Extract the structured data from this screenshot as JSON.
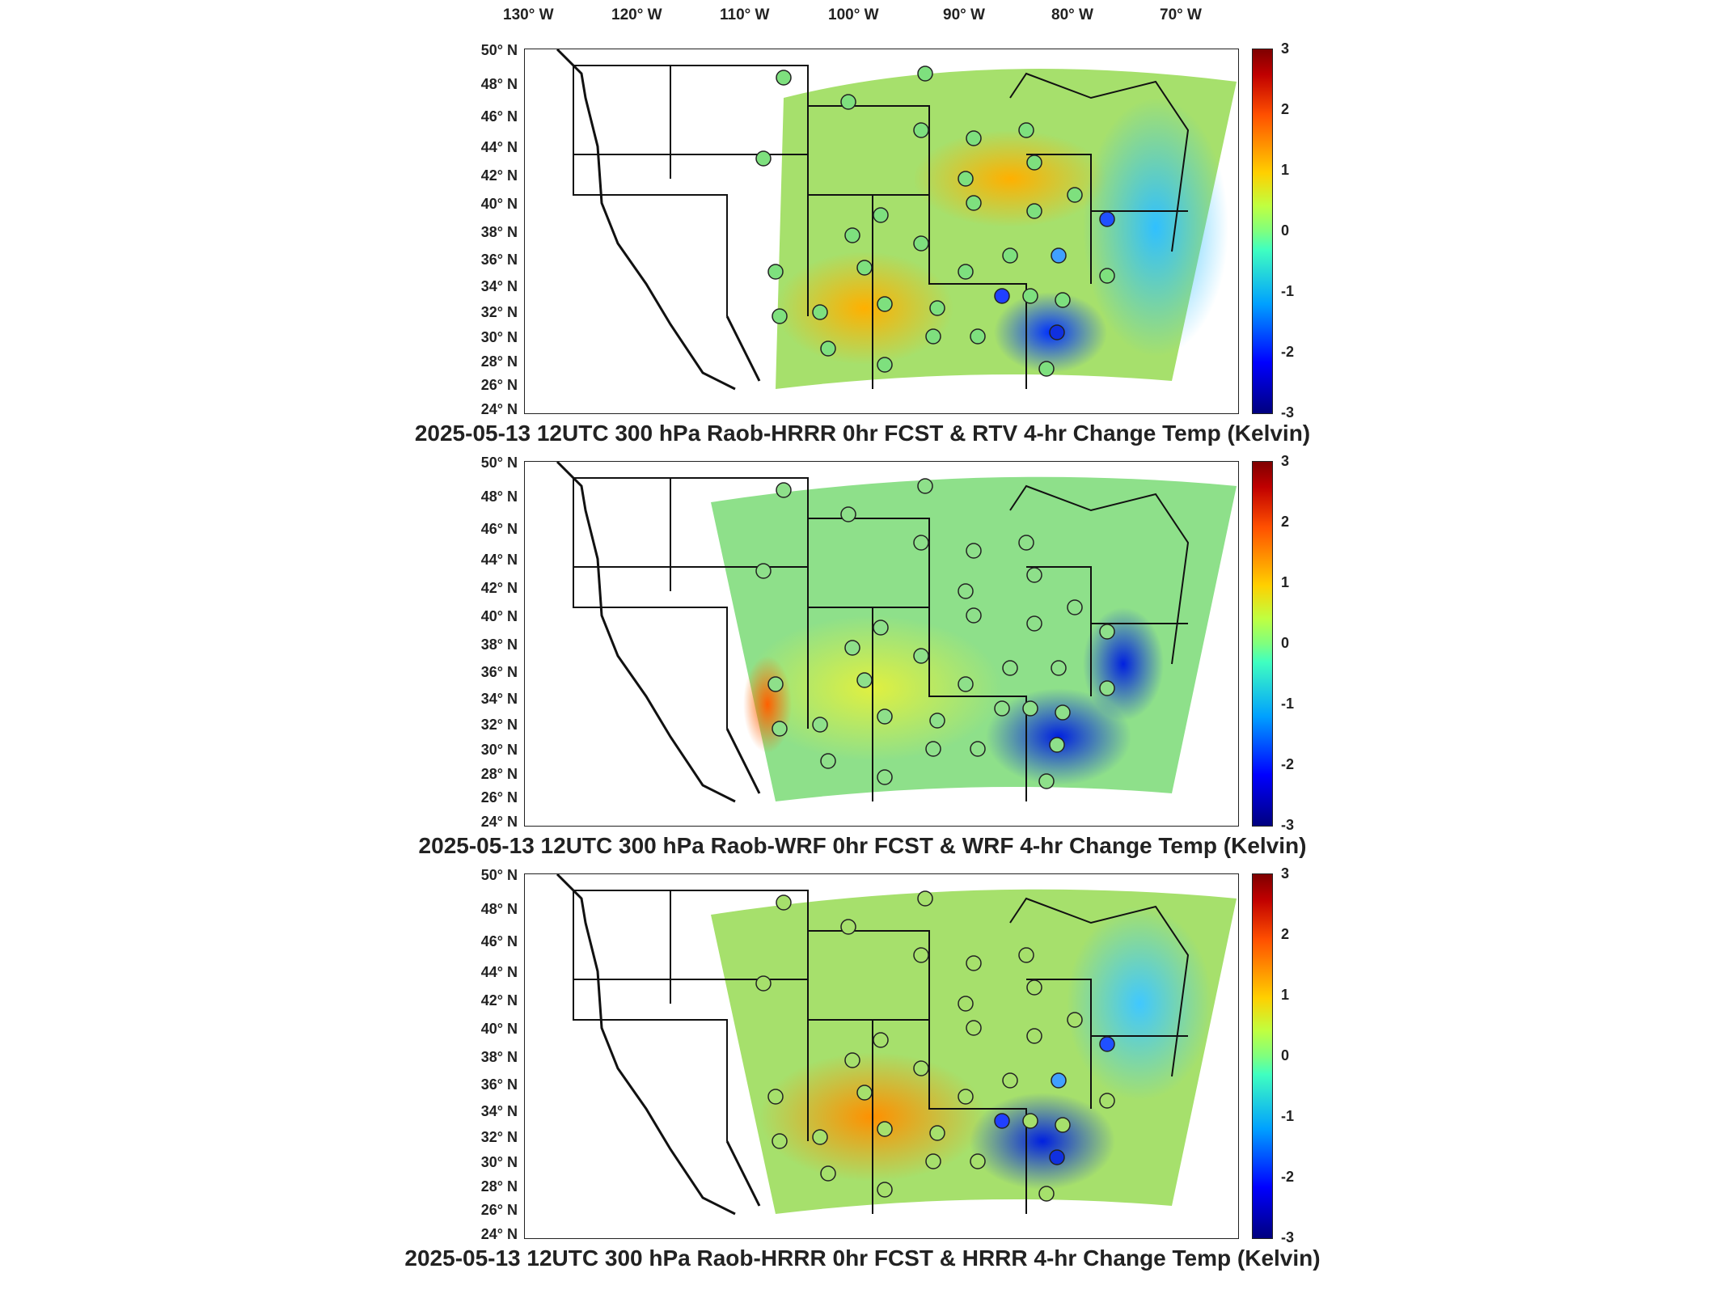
{
  "longitude_labels": [
    "130° W",
    "120° W",
    "110° W",
    "100° W",
    "90° W",
    "80° W",
    "70° W"
  ],
  "latitude_labels": [
    "50° N",
    "48° N",
    "46° N",
    "44° N",
    "42° N",
    "40° N",
    "38° N",
    "36° N",
    "34° N",
    "32° N",
    "30° N",
    "28° N",
    "26° N",
    "24° N"
  ],
  "colorbar_ticks": [
    "3",
    "2",
    "1",
    "0",
    "-1",
    "-2",
    "-3"
  ],
  "panels": [
    {
      "title": "2025-05-13 12UTC 300 hPa Raob-HRRR 0hr FCST & RTV 4-hr Change Temp (Kelvin)"
    },
    {
      "title": "2025-05-13 12UTC 300 hPa Raob-WRF 0hr FCST & WRF 4-hr Change Temp (Kelvin)"
    },
    {
      "title": "2025-05-13 12UTC 300 hPa Raob-HRRR 0hr FCST & HRRR 4-hr Change Temp (Kelvin)"
    }
  ],
  "colors": {
    "field_base": "#9de07a",
    "ocean_field": "#5fd6c0",
    "station_outline": "#222222"
  }
}
